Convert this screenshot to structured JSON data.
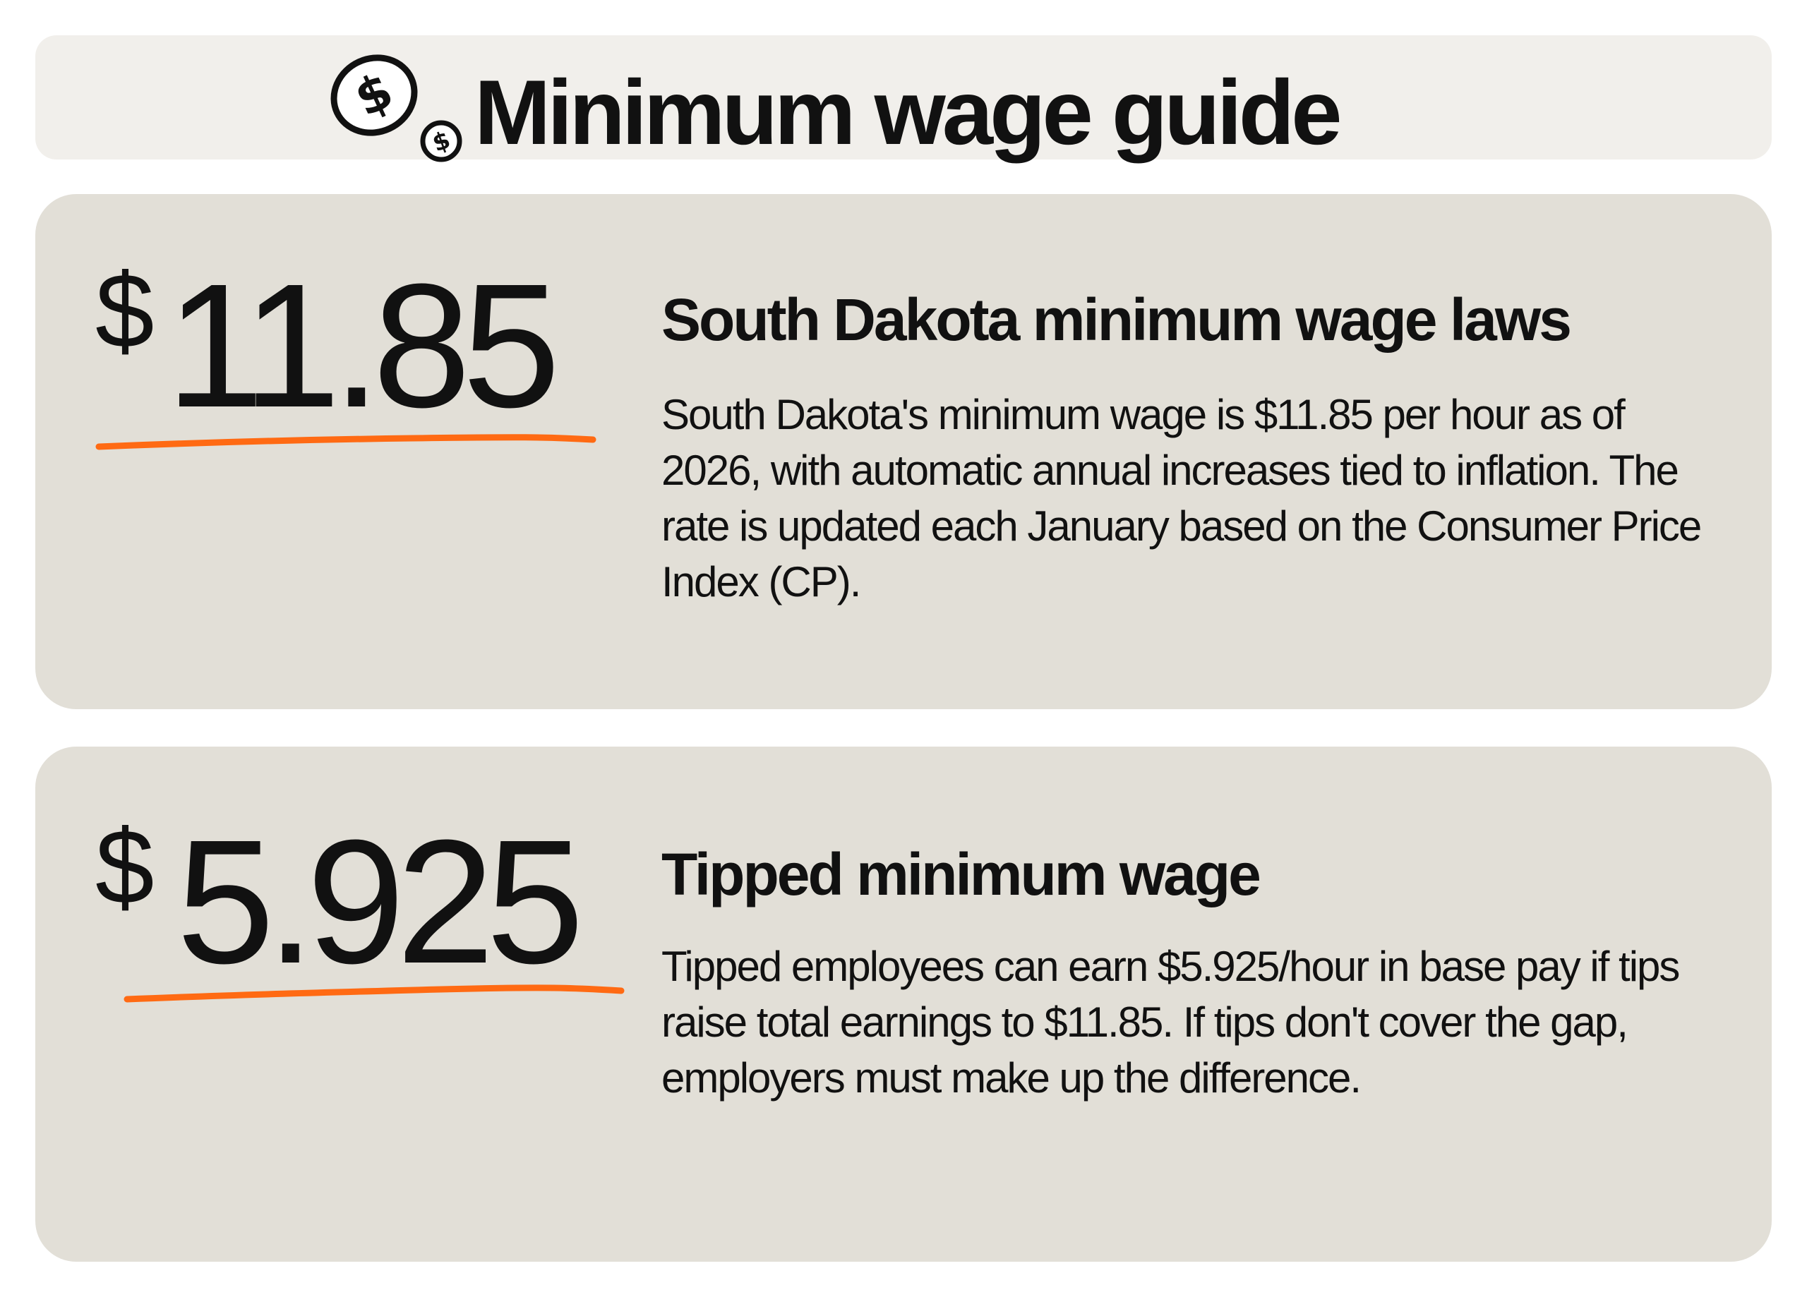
{
  "header": {
    "title": "Minimum wage guide",
    "icon": "dollar-coins-icon"
  },
  "cards": [
    {
      "currency": "$",
      "amount": "11.85",
      "title": "South Dakota minimum wage laws",
      "body": "South Dakota's minimum wage is $11.85 per hour as of 2026, with automatic annual increases tied to inflation. The rate is updated each January based on the Consumer Price Index (CP)."
    },
    {
      "currency": "$",
      "amount": "5.925",
      "title": "Tipped minimum wage",
      "body": "Tipped employees can earn $5.925/hour in base pay if tips raise total earnings to $11.85. If tips don't cover the gap, employers must make up the difference."
    }
  ],
  "colors": {
    "header_background": "#f1efeb",
    "card_background": "#e2dfd7",
    "accent_underline": "#ff6a13",
    "text": "#111111"
  }
}
